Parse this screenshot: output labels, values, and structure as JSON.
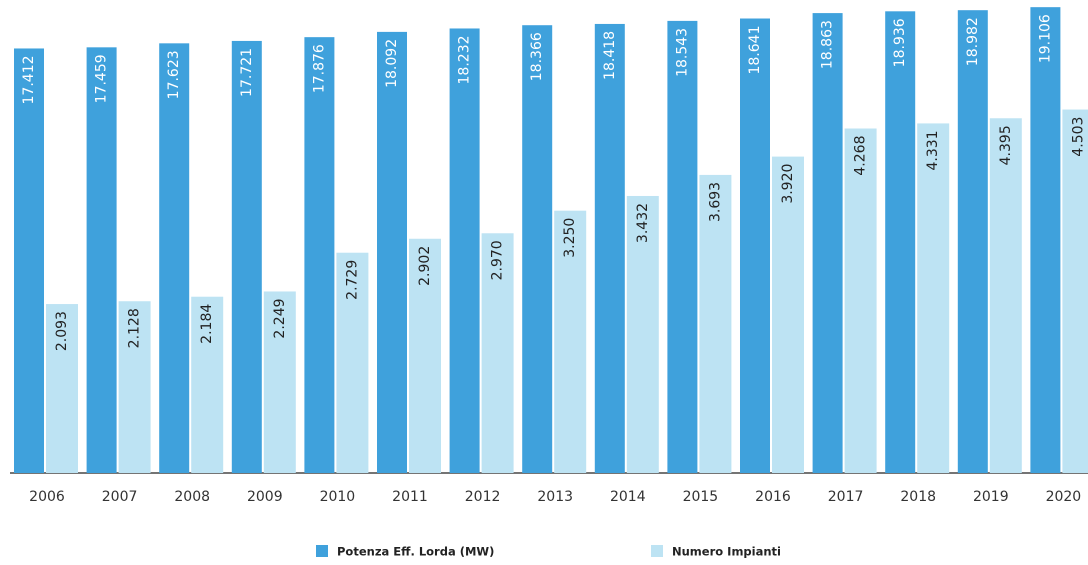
{
  "chart_data": {
    "type": "bar",
    "categories": [
      "2006",
      "2007",
      "2008",
      "2009",
      "2010",
      "2011",
      "2012",
      "2013",
      "2014",
      "2015",
      "2016",
      "2017",
      "2018",
      "2019",
      "2020"
    ],
    "series": [
      {
        "name": "Potenza Eff. Lorda (MW)",
        "color": "#3fa1dc",
        "values": [
          17412,
          17459,
          17623,
          17721,
          17876,
          18092,
          18232,
          18366,
          18418,
          18543,
          18641,
          18863,
          18936,
          18982,
          19106
        ],
        "value_labels": [
          "17.412",
          "17.459",
          "17.623",
          "17.721",
          "17.876",
          "18.092",
          "18.232",
          "18.366",
          "18.418",
          "18.543",
          "18.641",
          "18.863",
          "18.936",
          "18.982",
          "19.106"
        ]
      },
      {
        "name": "Numero Impianti",
        "color": "#bde3f3",
        "axis": "y2",
        "values": [
          2093,
          2128,
          2184,
          2249,
          2729,
          2902,
          2970,
          3250,
          3432,
          3693,
          3920,
          4268,
          4331,
          4395,
          4503
        ],
        "value_labels": [
          "2.093",
          "2.128",
          "2.184",
          "2.249",
          "2.729",
          "2.902",
          "2.970",
          "3.250",
          "3.432",
          "3.693",
          "3.920",
          "4.268",
          "4.331",
          "4.395",
          "4.503"
        ]
      }
    ],
    "ylim": [
      0,
      19400
    ],
    "y2lim": [
      0,
      5860
    ]
  }
}
